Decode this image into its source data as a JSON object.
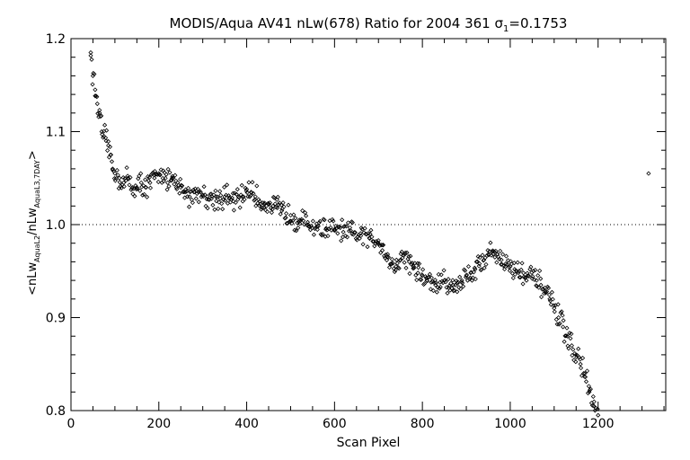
{
  "chart_data": {
    "type": "scatter",
    "title_parts": {
      "prefix": "MODIS/Aqua AV41 nLw(678) Ratio for 2004 361 σ",
      "sub": "1",
      "suffix": "=0.1753"
    },
    "xlabel": "Scan Pixel",
    "ylabel_parts": {
      "open": "<nLw",
      "sub1": "AquaL2",
      "mid": "/nLw",
      "sub2": "AquaL3,7DAY",
      "close": ">"
    },
    "xlim": [
      0,
      1354
    ],
    "ylim": [
      0.8,
      1.2
    ],
    "x_ticks": [
      0,
      200,
      400,
      600,
      800,
      1000,
      1200
    ],
    "x_tick_labels": [
      "0",
      "200",
      "400",
      "600",
      "800",
      "1000",
      "1200"
    ],
    "y_ticks": [
      0.8,
      0.9,
      1.0,
      1.1,
      1.2
    ],
    "y_tick_labels": [
      "0.8",
      "0.9",
      "1.0",
      "1.1",
      "1.2"
    ],
    "reference_line": {
      "y": 1.0,
      "style": "dotted"
    },
    "marker": "diamond",
    "profile_points": {
      "x": [
        45,
        50,
        55,
        60,
        65,
        70,
        75,
        80,
        85,
        90,
        95,
        100,
        110,
        120,
        130,
        140,
        150,
        160,
        170,
        180,
        190,
        200,
        210,
        220,
        230,
        240,
        250,
        260,
        270,
        280,
        290,
        300,
        310,
        320,
        330,
        340,
        350,
        360,
        370,
        380,
        390,
        400,
        410,
        420,
        430,
        440,
        450,
        460,
        470,
        480,
        490,
        500,
        520,
        540,
        560,
        580,
        600,
        620,
        640,
        660,
        680,
        700,
        710,
        720,
        730,
        740,
        750,
        760,
        770,
        780,
        790,
        800,
        810,
        820,
        830,
        840,
        850,
        860,
        870,
        880,
        890,
        900,
        910,
        920,
        930,
        940,
        950,
        960,
        970,
        980,
        990,
        1000,
        1010,
        1020,
        1030,
        1040,
        1050,
        1060,
        1070,
        1080,
        1090,
        1100,
        1110,
        1120,
        1130,
        1140,
        1150,
        1160,
        1170,
        1180,
        1190,
        1200
      ],
      "y": [
        1.185,
        1.16,
        1.145,
        1.13,
        1.12,
        1.1,
        1.095,
        1.09,
        1.085,
        1.075,
        1.06,
        1.055,
        1.05,
        1.045,
        1.05,
        1.04,
        1.04,
        1.045,
        1.04,
        1.045,
        1.05,
        1.055,
        1.058,
        1.045,
        1.05,
        1.04,
        1.04,
        1.035,
        1.03,
        1.035,
        1.035,
        1.032,
        1.03,
        1.028,
        1.03,
        1.028,
        1.03,
        1.028,
        1.025,
        1.027,
        1.03,
        1.038,
        1.035,
        1.03,
        1.025,
        1.022,
        1.022,
        1.02,
        1.018,
        1.015,
        1.012,
        1.01,
        1.005,
        1.0,
        0.998,
        0.995,
        0.995,
        0.992,
        0.99,
        0.988,
        0.985,
        0.983,
        0.978,
        0.965,
        0.958,
        0.955,
        0.962,
        0.968,
        0.96,
        0.955,
        0.948,
        0.945,
        0.94,
        0.938,
        0.935,
        0.938,
        0.94,
        0.932,
        0.935,
        0.937,
        0.94,
        0.945,
        0.948,
        0.952,
        0.958,
        0.962,
        0.968,
        0.972,
        0.968,
        0.962,
        0.958,
        0.955,
        0.952,
        0.95,
        0.948,
        0.945,
        0.942,
        0.94,
        0.935,
        0.928,
        0.92,
        0.91,
        0.9,
        0.89,
        0.88,
        0.87,
        0.86,
        0.85,
        0.84,
        0.82,
        0.805,
        0.795
      ]
    },
    "outlier_points": {
      "x": [
        1315
      ],
      "y": [
        1.055
      ]
    }
  }
}
